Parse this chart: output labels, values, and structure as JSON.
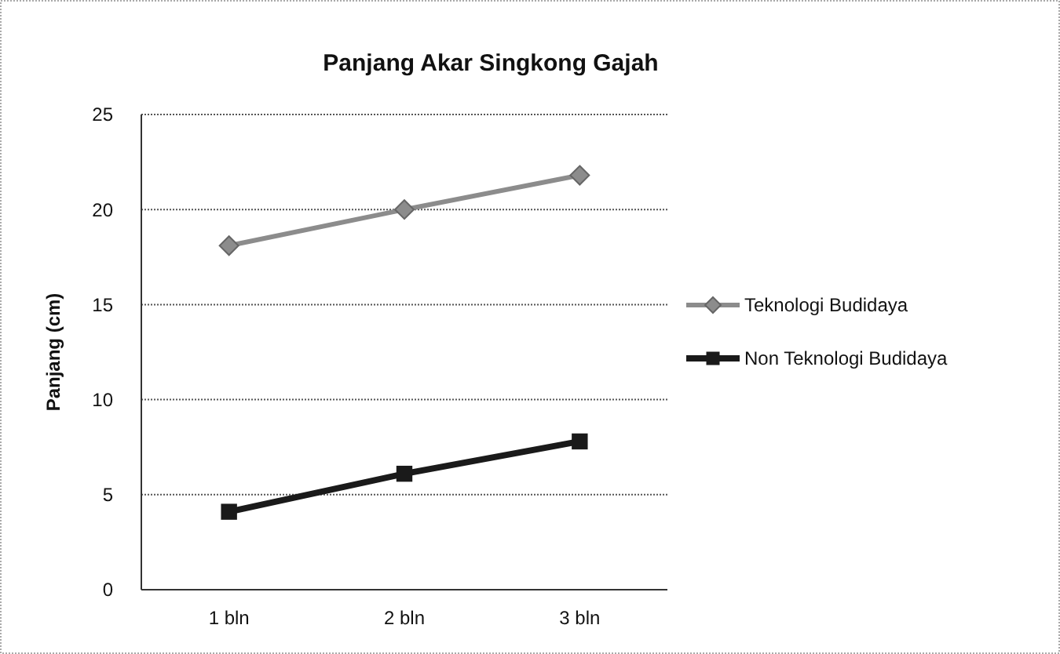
{
  "chart_data": {
    "type": "line",
    "title": "Panjang Akar Singkong Gajah",
    "ylabel": "Panjang (cm)",
    "categories": [
      "1 bln",
      "2 bln",
      "3 bln"
    ],
    "series": [
      {
        "name": "Teknologi Budidaya",
        "color": "#8c8c8c",
        "marker": "diamond",
        "values": [
          18.1,
          20.0,
          21.8
        ]
      },
      {
        "name": "Non Teknologi Budidaya",
        "color": "#1a1a1a",
        "marker": "square",
        "values": [
          4.1,
          6.1,
          7.8
        ]
      }
    ],
    "ylim": [
      0,
      25
    ],
    "yticks": [
      0,
      5,
      10,
      15,
      20,
      25
    ],
    "grid": "y",
    "legend": "right"
  }
}
